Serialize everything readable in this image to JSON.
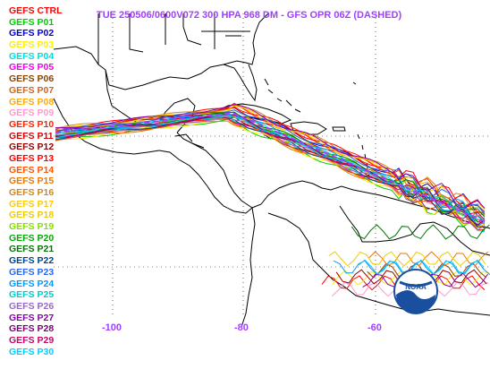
{
  "title": "TUE 250506/0600V072  300 HPA 968 DM - GFS OPR 06Z (DASHED)",
  "title_color": "#a040ff",
  "legend": [
    {
      "label": "GEFS CTRL",
      "color": "#ff0000"
    },
    {
      "label": "GEFS P01",
      "color": "#00cc00"
    },
    {
      "label": "GEFS P02",
      "color": "#0000cc"
    },
    {
      "label": "GEFS P03",
      "color": "#ffee00"
    },
    {
      "label": "GEFS P04",
      "color": "#00dddd"
    },
    {
      "label": "GEFS P05",
      "color": "#ee00ee"
    },
    {
      "label": "GEFS P06",
      "color": "#884400"
    },
    {
      "label": "GEFS P07",
      "color": "#cc6622"
    },
    {
      "label": "GEFS P08",
      "color": "#ffaa00"
    },
    {
      "label": "GEFS P09",
      "color": "#ff99cc"
    },
    {
      "label": "GEFS P10",
      "color": "#ff2200"
    },
    {
      "label": "GEFS P11",
      "color": "#dd0000"
    },
    {
      "label": "GEFS P12",
      "color": "#990000"
    },
    {
      "label": "GEFS P13",
      "color": "#ff0000"
    },
    {
      "label": "GEFS P14",
      "color": "#ff5500"
    },
    {
      "label": "GEFS P15",
      "color": "#ee7700"
    },
    {
      "label": "GEFS P16",
      "color": "#cc8822"
    },
    {
      "label": "GEFS P17",
      "color": "#ffcc00"
    },
    {
      "label": "GEFS P18",
      "color": "#eecc00"
    },
    {
      "label": "GEFS P19",
      "color": "#88dd00"
    },
    {
      "label": "GEFS P20",
      "color": "#00aa00"
    },
    {
      "label": "GEFS P21",
      "color": "#007700"
    },
    {
      "label": "GEFS P22",
      "color": "#004488"
    },
    {
      "label": "GEFS P23",
      "color": "#2266ff"
    },
    {
      "label": "GEFS P24",
      "color": "#0099ff"
    },
    {
      "label": "GEFS P25",
      "color": "#00cccc"
    },
    {
      "label": "GEFS P26",
      "color": "#9966cc"
    },
    {
      "label": "GEFS P27",
      "color": "#8800aa"
    },
    {
      "label": "GEFS P28",
      "color": "#770077"
    },
    {
      "label": "GEFS P29",
      "color": "#cc0066"
    },
    {
      "label": "GEFS P30",
      "color": "#00ccff"
    }
  ],
  "longitude_labels": [
    "-100",
    "-80",
    "-60"
  ],
  "logo_text": "NOAA",
  "colors": {
    "coast": "#000000",
    "grid": "#000000",
    "logo_blue": "#1a4fa0"
  }
}
